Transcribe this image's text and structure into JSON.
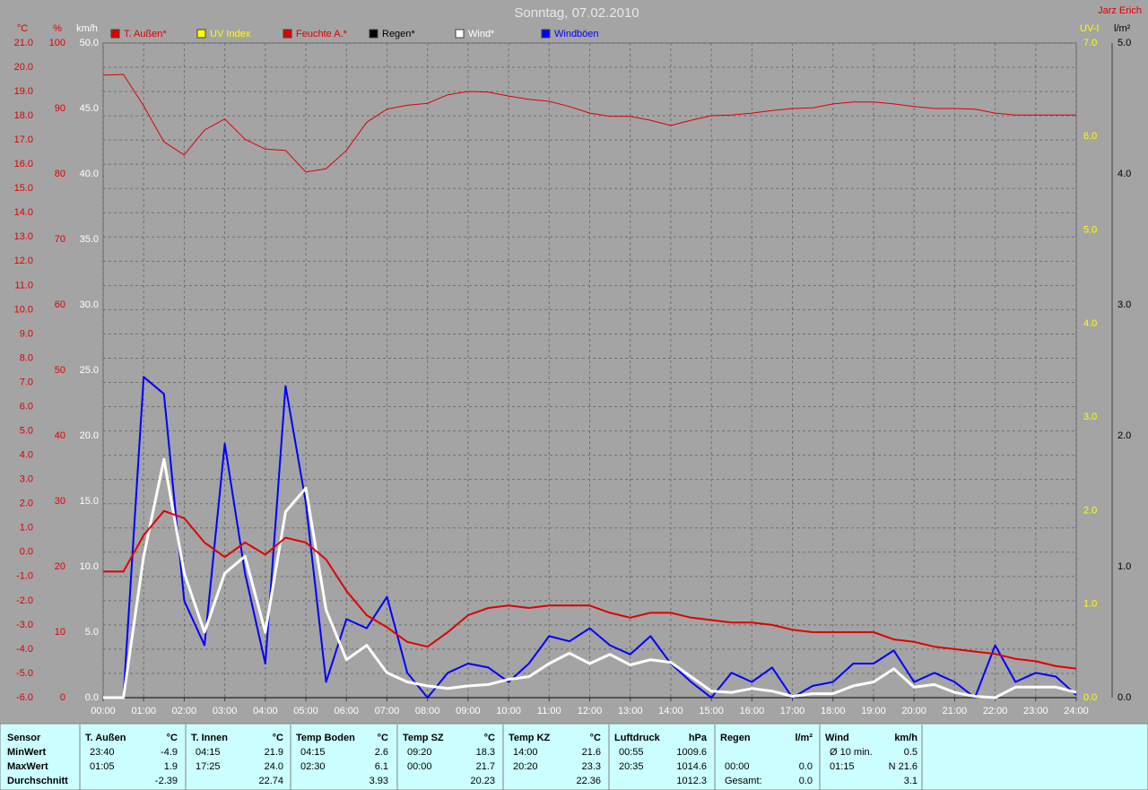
{
  "chart_data": {
    "type": "line",
    "title": "Sonntag, 07.02.2010",
    "corner_text": "Jarz Erich",
    "x": [
      "00:00",
      "00:30",
      "01:00",
      "01:30",
      "02:00",
      "02:30",
      "03:00",
      "03:30",
      "04:00",
      "04:30",
      "05:00",
      "05:30",
      "06:00",
      "06:30",
      "07:00",
      "07:30",
      "08:00",
      "08:30",
      "09:00",
      "09:30",
      "10:00",
      "10:30",
      "11:00",
      "11:30",
      "12:00",
      "12:30",
      "13:00",
      "13:30",
      "14:00",
      "14:30",
      "15:00",
      "15:30",
      "16:00",
      "16:30",
      "17:00",
      "17:30",
      "18:00",
      "18:30",
      "19:00",
      "19:30",
      "20:00",
      "20:30",
      "21:00",
      "21:30",
      "22:00",
      "22:30",
      "23:00",
      "23:30",
      "24:00"
    ],
    "xlim": [
      "00:00",
      "24:00"
    ],
    "xticks": [
      "00:00",
      "01:00",
      "02:00",
      "03:00",
      "04:00",
      "05:00",
      "06:00",
      "07:00",
      "08:00",
      "09:00",
      "10:00",
      "11:00",
      "12:00",
      "13:00",
      "14:00",
      "15:00",
      "16:00",
      "17:00",
      "18:00",
      "19:00",
      "20:00",
      "21:00",
      "22:00",
      "23:00",
      "24:00"
    ],
    "grid": true,
    "axes": {
      "y2": {
        "label": "°C",
        "color": "#e00000",
        "side": "left",
        "lim": [
          -6,
          21
        ],
        "ticks": [
          {
            "value": -6,
            "label": "-6.0"
          },
          {
            "value": -5,
            "label": "-5.0"
          },
          {
            "value": -4,
            "label": "-4.0"
          },
          {
            "value": -3,
            "label": "-3.0"
          },
          {
            "value": -2,
            "label": "-2.0"
          },
          {
            "value": -1,
            "label": "-1.0"
          },
          {
            "value": 0,
            "label": "0.0"
          },
          {
            "value": 1,
            "label": "1.0"
          },
          {
            "value": 2,
            "label": "2.0"
          },
          {
            "value": 3,
            "label": "3.0"
          },
          {
            "value": 4,
            "label": "4.0"
          },
          {
            "value": 5,
            "label": "5.0"
          },
          {
            "value": 6,
            "label": "6.0"
          },
          {
            "value": 7,
            "label": "7.0"
          },
          {
            "value": 8,
            "label": "8.0"
          },
          {
            "value": 9,
            "label": "9.0"
          },
          {
            "value": 10,
            "label": "10.0"
          },
          {
            "value": 11,
            "label": "11.0"
          },
          {
            "value": 12,
            "label": "12.0"
          },
          {
            "value": 13,
            "label": "13.0"
          },
          {
            "value": 14,
            "label": "14.0"
          },
          {
            "value": 15,
            "label": "15.0"
          },
          {
            "value": 16,
            "label": "16.0"
          },
          {
            "value": 17,
            "label": "17.0"
          },
          {
            "value": 18,
            "label": "18.0"
          },
          {
            "value": 19,
            "label": "19.0"
          },
          {
            "value": 20,
            "label": "20.0"
          },
          {
            "value": 21,
            "label": "21.0"
          }
        ]
      },
      "y3": {
        "label": "%",
        "color": "#e00000",
        "side": "left",
        "lim": [
          0,
          100
        ],
        "ticks": [
          0,
          10,
          20,
          30,
          40,
          50,
          60,
          70,
          80,
          90,
          100
        ]
      },
      "y": {
        "label": "km/h",
        "color": "#ffffff",
        "side": "left",
        "lim": [
          0,
          50
        ],
        "ticks": [
          {
            "value": 0,
            "label": "0.0"
          },
          {
            "value": 5,
            "label": "5.0"
          },
          {
            "value": 10,
            "label": "10.0"
          },
          {
            "value": 15,
            "label": "15.0"
          },
          {
            "value": 20,
            "label": "20.0"
          },
          {
            "value": 25,
            "label": "25.0"
          },
          {
            "value": 30,
            "label": "30.0"
          },
          {
            "value": 35,
            "label": "35.0"
          },
          {
            "value": 40,
            "label": "40.0"
          },
          {
            "value": 45,
            "label": "45.0"
          },
          {
            "value": 50,
            "label": "50.0"
          }
        ]
      },
      "y4": {
        "label": "UV-I",
        "color": "#ffff00",
        "side": "right",
        "lim": [
          0,
          7
        ],
        "ticks": [
          {
            "value": 0,
            "label": "0.0"
          },
          {
            "value": 1,
            "label": "1.0"
          },
          {
            "value": 2,
            "label": "2.0"
          },
          {
            "value": 3,
            "label": "3.0"
          },
          {
            "value": 4,
            "label": "4.0"
          },
          {
            "value": 5,
            "label": "5.0"
          },
          {
            "value": 6,
            "label": "6.0"
          },
          {
            "value": 7,
            "label": "7.0"
          }
        ]
      },
      "y5": {
        "label": "l/m²",
        "color": "#000000",
        "side": "right",
        "lim": [
          0,
          5
        ],
        "ticks": [
          {
            "value": 0,
            "label": "0.0"
          },
          {
            "value": 1,
            "label": "1.0"
          },
          {
            "value": 2,
            "label": "2.0"
          },
          {
            "value": 3,
            "label": "3.0"
          },
          {
            "value": 4,
            "label": "4.0"
          },
          {
            "value": 5,
            "label": "5.0"
          }
        ]
      }
    },
    "series": [
      {
        "name": "T. Außen*",
        "color": "#e00000",
        "axis": "y2",
        "values": [
          -0.8,
          -0.8,
          0.7,
          1.7,
          1.4,
          0.4,
          -0.2,
          0.4,
          -0.1,
          0.6,
          0.4,
          -0.3,
          -1.6,
          -2.6,
          -3.1,
          -3.7,
          -3.9,
          -3.3,
          -2.6,
          -2.3,
          -2.2,
          -2.3,
          -2.2,
          -2.2,
          -2.2,
          -2.5,
          -2.7,
          -2.5,
          -2.5,
          -2.7,
          -2.8,
          -2.9,
          -2.9,
          -3.0,
          -3.2,
          -3.3,
          -3.3,
          -3.3,
          -3.3,
          -3.6,
          -3.7,
          -3.9,
          -4.0,
          -4.1,
          -4.2,
          -4.4,
          -4.5,
          -4.7,
          -4.8
        ]
      },
      {
        "name": "UV Index",
        "color": "#ffff00",
        "axis": "y4",
        "values": [
          0,
          0,
          0,
          0,
          0,
          0,
          0,
          0,
          0,
          0,
          0,
          0,
          0,
          0,
          0,
          0,
          0,
          0,
          0,
          0,
          0,
          0,
          0,
          0,
          0,
          0,
          0,
          0,
          0,
          0,
          0,
          0,
          0,
          0,
          0,
          0,
          0,
          0,
          0,
          0,
          0,
          0,
          0,
          0,
          0,
          0,
          0,
          0,
          0
        ]
      },
      {
        "name": "Feuchte A.*",
        "color": "#e00000",
        "axis": "y3",
        "values": [
          95.1,
          95.2,
          90.4,
          84.9,
          82.9,
          86.7,
          88.4,
          85.3,
          83.8,
          83.6,
          80.3,
          80.8,
          83.6,
          87.9,
          89.9,
          90.5,
          90.8,
          92.1,
          92.6,
          92.5,
          91.9,
          91.4,
          91.1,
          90.3,
          89.3,
          88.8,
          88.8,
          88.2,
          87.4,
          88.2,
          88.9,
          89.0,
          89.3,
          89.7,
          90.0,
          90.1,
          90.7,
          91.0,
          91.0,
          90.7,
          90.3,
          90.0,
          90.0,
          89.9,
          89.3,
          89.0,
          89.0,
          89.0,
          89.0
        ]
      },
      {
        "name": "Regen*",
        "color": "#000000",
        "axis": "y5",
        "values": [
          0,
          0,
          0,
          0,
          0,
          0,
          0,
          0,
          0,
          0,
          0,
          0,
          0,
          0,
          0,
          0,
          0,
          0,
          0,
          0,
          0,
          0,
          0,
          0,
          0,
          0,
          0,
          0,
          0,
          0,
          0,
          0,
          0,
          0,
          0,
          0,
          0,
          0,
          0,
          0,
          0,
          0,
          0,
          0,
          0,
          0,
          0,
          0,
          0
        ]
      },
      {
        "name": "Wind*",
        "color": "#ffffff",
        "axis": "y",
        "values": [
          0,
          0,
          10.8,
          18.2,
          9.5,
          5,
          9.5,
          10.8,
          5,
          14.2,
          16,
          6.7,
          2.9,
          4,
          1.9,
          1.2,
          0.9,
          0.7,
          0.9,
          1,
          1.4,
          1.6,
          2.6,
          3.4,
          2.6,
          3.3,
          2.5,
          2.9,
          2.7,
          1.6,
          0.5,
          0.4,
          0.7,
          0.5,
          0.1,
          0.3,
          0.3,
          0.9,
          1.2,
          2.2,
          0.8,
          1,
          0.4,
          0.1,
          0,
          0.8,
          0.8,
          0.8,
          0.4
        ]
      },
      {
        "name": "Windböen",
        "color": "#0000ff",
        "axis": "y",
        "values": [
          0,
          0,
          24.5,
          23.2,
          7.4,
          4,
          19.4,
          9.5,
          2.6,
          23.8,
          14.9,
          1.2,
          6,
          5.3,
          7.7,
          1.9,
          0,
          1.9,
          2.6,
          2.3,
          1.2,
          2.6,
          4.7,
          4.3,
          5.3,
          4,
          3.3,
          4.7,
          2.6,
          1.2,
          0,
          1.9,
          1.2,
          2.3,
          0,
          0.9,
          1.2,
          2.6,
          2.6,
          3.6,
          1.2,
          1.9,
          1.2,
          0,
          4,
          1.2,
          1.9,
          1.6,
          0.2
        ]
      }
    ]
  },
  "stats": {
    "row_labels": [
      "Sensor",
      "MinWert",
      "MaxWert",
      "Durchschnitt"
    ],
    "groups": [
      {
        "name": "T. Außen",
        "unit": "°C",
        "rows": [
          {
            "left": "23:40",
            "right": "-4.9"
          },
          {
            "left": "01:05",
            "right": "1.9"
          },
          {
            "right": "-2.39"
          }
        ]
      },
      {
        "name": "T. Innen",
        "unit": "°C",
        "rows": [
          {
            "left": "04:15",
            "right": "21.9"
          },
          {
            "left": "17:25",
            "right": "24.0"
          },
          {
            "right": "22.74"
          }
        ]
      },
      {
        "name": "Temp Boden",
        "unit": "°C",
        "rows": [
          {
            "left": "04:15",
            "right": "2.6"
          },
          {
            "left": "02:30",
            "right": "6.1"
          },
          {
            "right": "3.93"
          }
        ]
      },
      {
        "name": "Temp SZ",
        "unit": "°C",
        "rows": [
          {
            "left": "09:20",
            "right": "18.3"
          },
          {
            "left": "00:00",
            "right": "21.7"
          },
          {
            "right": "20.23"
          }
        ]
      },
      {
        "name": "Temp KZ",
        "unit": "°C",
        "rows": [
          {
            "left": "14:00",
            "right": "21.6"
          },
          {
            "left": "20:20",
            "right": "23.3"
          },
          {
            "right": "22.36"
          }
        ]
      },
      {
        "name": "Luftdruck",
        "unit": "hPa",
        "rows": [
          {
            "left": "00:55",
            "right": "1009.6"
          },
          {
            "left": "20:35",
            "right": "1014.6"
          },
          {
            "right": "1012.3"
          }
        ]
      },
      {
        "name": "Regen",
        "unit": "l/m²",
        "rows": [
          null,
          {
            "left": "00:00",
            "right": "0.0"
          },
          {
            "left": "Gesamt:",
            "right": "0.0"
          }
        ]
      },
      {
        "name": "Wind",
        "unit": "km/h",
        "rows": [
          {
            "left": "Ø 10 min.",
            "right": "0.5"
          },
          {
            "left": "01:15",
            "right": "N 21.6"
          },
          {
            "right": "3.1"
          }
        ]
      }
    ]
  }
}
